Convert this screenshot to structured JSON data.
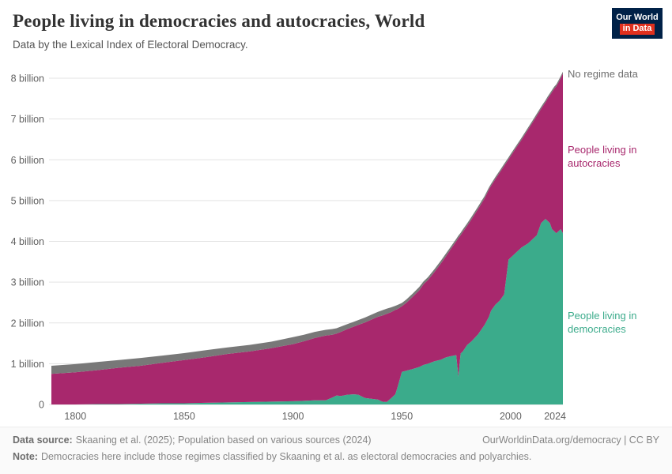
{
  "header": {
    "title": "People living in democracies and autocracies, World",
    "subtitle": "Data by the Lexical Index of Electoral Democracy.",
    "logo": {
      "line1": "Our World",
      "line2": "in Data",
      "navy": "#002147",
      "red": "#e0301e"
    }
  },
  "chart_data": {
    "type": "area",
    "stacked": true,
    "title": "People living in democracies and autocracies, World",
    "xlabel": "",
    "ylabel": "",
    "unit": "billion people",
    "grid": "horizontal",
    "legend_position": "right-edge-labels",
    "x_range": [
      1789,
      2024
    ],
    "ylim": [
      0,
      8
    ],
    "x_ticks": [
      1800,
      1850,
      1900,
      1950,
      2000,
      2024
    ],
    "y_ticks": [
      0,
      1,
      2,
      3,
      4,
      5,
      6,
      7,
      8
    ],
    "y_tick_labels": [
      "0",
      "1 billion",
      "2 billion",
      "3 billion",
      "4 billion",
      "5 billion",
      "6 billion",
      "7 billion",
      "8 billion"
    ],
    "years": [
      1789,
      1800,
      1810,
      1820,
      1830,
      1840,
      1850,
      1860,
      1870,
      1880,
      1890,
      1900,
      1905,
      1910,
      1915,
      1918,
      1920,
      1922,
      1925,
      1928,
      1930,
      1933,
      1936,
      1939,
      1941,
      1943,
      1945,
      1947,
      1948,
      1950,
      1952,
      1955,
      1958,
      1960,
      1962,
      1965,
      1968,
      1970,
      1972,
      1975,
      1976,
      1977,
      1978,
      1980,
      1982,
      1985,
      1988,
      1990,
      1991,
      1993,
      1995,
      1997,
      1999,
      2000,
      2002,
      2005,
      2008,
      2010,
      2012,
      2014,
      2015,
      2016,
      2017,
      2018,
      2019,
      2020,
      2021,
      2022,
      2023,
      2024
    ],
    "series": [
      {
        "id": "democracies",
        "name": "People living in democracies",
        "color": "#3bab8b",
        "values": [
          0,
          0,
          0.01,
          0.01,
          0.02,
          0.03,
          0.03,
          0.04,
          0.05,
          0.06,
          0.07,
          0.08,
          0.09,
          0.1,
          0.1,
          0.17,
          0.22,
          0.21,
          0.24,
          0.25,
          0.24,
          0.16,
          0.14,
          0.12,
          0.07,
          0.06,
          0.15,
          0.25,
          0.42,
          0.8,
          0.83,
          0.87,
          0.92,
          0.97,
          1.0,
          1.06,
          1.1,
          1.15,
          1.18,
          1.21,
          0.68,
          1.25,
          1.3,
          1.46,
          1.55,
          1.72,
          1.95,
          2.15,
          2.3,
          2.45,
          2.55,
          2.7,
          3.55,
          3.6,
          3.7,
          3.85,
          3.95,
          4.05,
          4.15,
          4.45,
          4.5,
          4.55,
          4.5,
          4.45,
          4.3,
          4.25,
          4.2,
          4.25,
          4.3,
          4.2
        ]
      },
      {
        "id": "autocracies",
        "name": "People living in autocracies",
        "color": "#a8286d",
        "values": [
          0.75,
          0.79,
          0.83,
          0.89,
          0.93,
          0.99,
          1.06,
          1.12,
          1.19,
          1.24,
          1.31,
          1.4,
          1.46,
          1.53,
          1.59,
          1.54,
          1.52,
          1.57,
          1.61,
          1.66,
          1.71,
          1.85,
          1.94,
          2.03,
          2.11,
          2.16,
          2.11,
          2.07,
          1.92,
          1.61,
          1.66,
          1.77,
          1.88,
          1.98,
          2.05,
          2.19,
          2.36,
          2.46,
          2.59,
          2.79,
          3.4,
          2.9,
          2.93,
          2.92,
          2.99,
          3.07,
          3.1,
          3.12,
          3.06,
          3.08,
          3.14,
          3.15,
          2.46,
          2.49,
          2.55,
          2.64,
          2.79,
          2.86,
          2.93,
          2.8,
          2.83,
          2.86,
          3.0,
          3.13,
          3.36,
          3.49,
          3.6,
          3.65,
          3.7,
          3.91
        ]
      },
      {
        "id": "no-regime-data",
        "name": "No regime data",
        "color": "#787878",
        "label_color": "#6e6e6e",
        "values": [
          0.2,
          0.2,
          0.2,
          0.19,
          0.19,
          0.18,
          0.17,
          0.17,
          0.16,
          0.16,
          0.16,
          0.17,
          0.16,
          0.15,
          0.14,
          0.14,
          0.13,
          0.13,
          0.12,
          0.12,
          0.12,
          0.12,
          0.12,
          0.12,
          0.13,
          0.13,
          0.12,
          0.1,
          0.1,
          0.08,
          0.08,
          0.08,
          0.08,
          0.07,
          0.07,
          0.07,
          0.07,
          0.07,
          0.06,
          0.06,
          0.06,
          0.06,
          0.06,
          0.06,
          0.06,
          0.06,
          0.06,
          0.05,
          0.05,
          0.05,
          0.05,
          0.05,
          0.05,
          0.05,
          0.05,
          0.05,
          0.05,
          0.05,
          0.05,
          0.05,
          0.05,
          0.05,
          0.05,
          0.05,
          0.05,
          0.05,
          0.05,
          0.05,
          0.05,
          0.05
        ]
      }
    ]
  },
  "footer": {
    "data_source_label": "Data source:",
    "data_source_text": "Skaaning et al. (2025); Population based on various sources (2024)",
    "attribution": "OurWorldinData.org/democracy | CC BY",
    "note_label": "Note:",
    "note_text": "Democracies here include those regimes classified by Skaaning et al. as electoral democracies and polyarchies."
  }
}
